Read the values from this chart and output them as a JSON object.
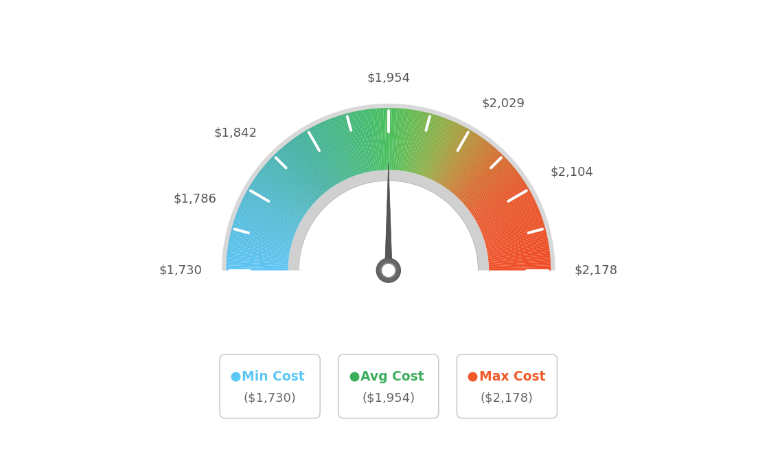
{
  "min_val": 1730,
  "max_val": 2178,
  "avg_val": 1954,
  "labels": {
    "min_label": "$1,730",
    "val1_label": "$1,786",
    "val2_label": "$1,842",
    "avg_label": "$1,954",
    "val3_label": "$2,029",
    "val4_label": "$2,104",
    "max_label": "$2,178"
  },
  "legend": [
    {
      "label": "Min Cost",
      "value": "($1,730)",
      "color": "#5bc8f5"
    },
    {
      "label": "Avg Cost",
      "value": "($1,954)",
      "color": "#3dae5e"
    },
    {
      "label": "Max Cost",
      "value": "($2,178)",
      "color": "#f05a28"
    }
  ],
  "color_stops": [
    [
      0.0,
      [
        92,
        195,
        245
      ]
    ],
    [
      0.15,
      [
        80,
        185,
        210
      ]
    ],
    [
      0.3,
      [
        65,
        175,
        160
      ]
    ],
    [
      0.45,
      [
        65,
        185,
        110
      ]
    ],
    [
      0.5,
      [
        70,
        190,
        90
      ]
    ],
    [
      0.55,
      [
        100,
        185,
        80
      ]
    ],
    [
      0.62,
      [
        145,
        170,
        65
      ]
    ],
    [
      0.68,
      [
        185,
        140,
        55
      ]
    ],
    [
      0.74,
      [
        210,
        110,
        45
      ]
    ],
    [
      0.82,
      [
        230,
        85,
        40
      ]
    ],
    [
      1.0,
      [
        240,
        75,
        35
      ]
    ]
  ],
  "bg_color": "#ffffff",
  "label_color": "#555555",
  "needle_dark": "#555555",
  "needle_mid": "#777777"
}
